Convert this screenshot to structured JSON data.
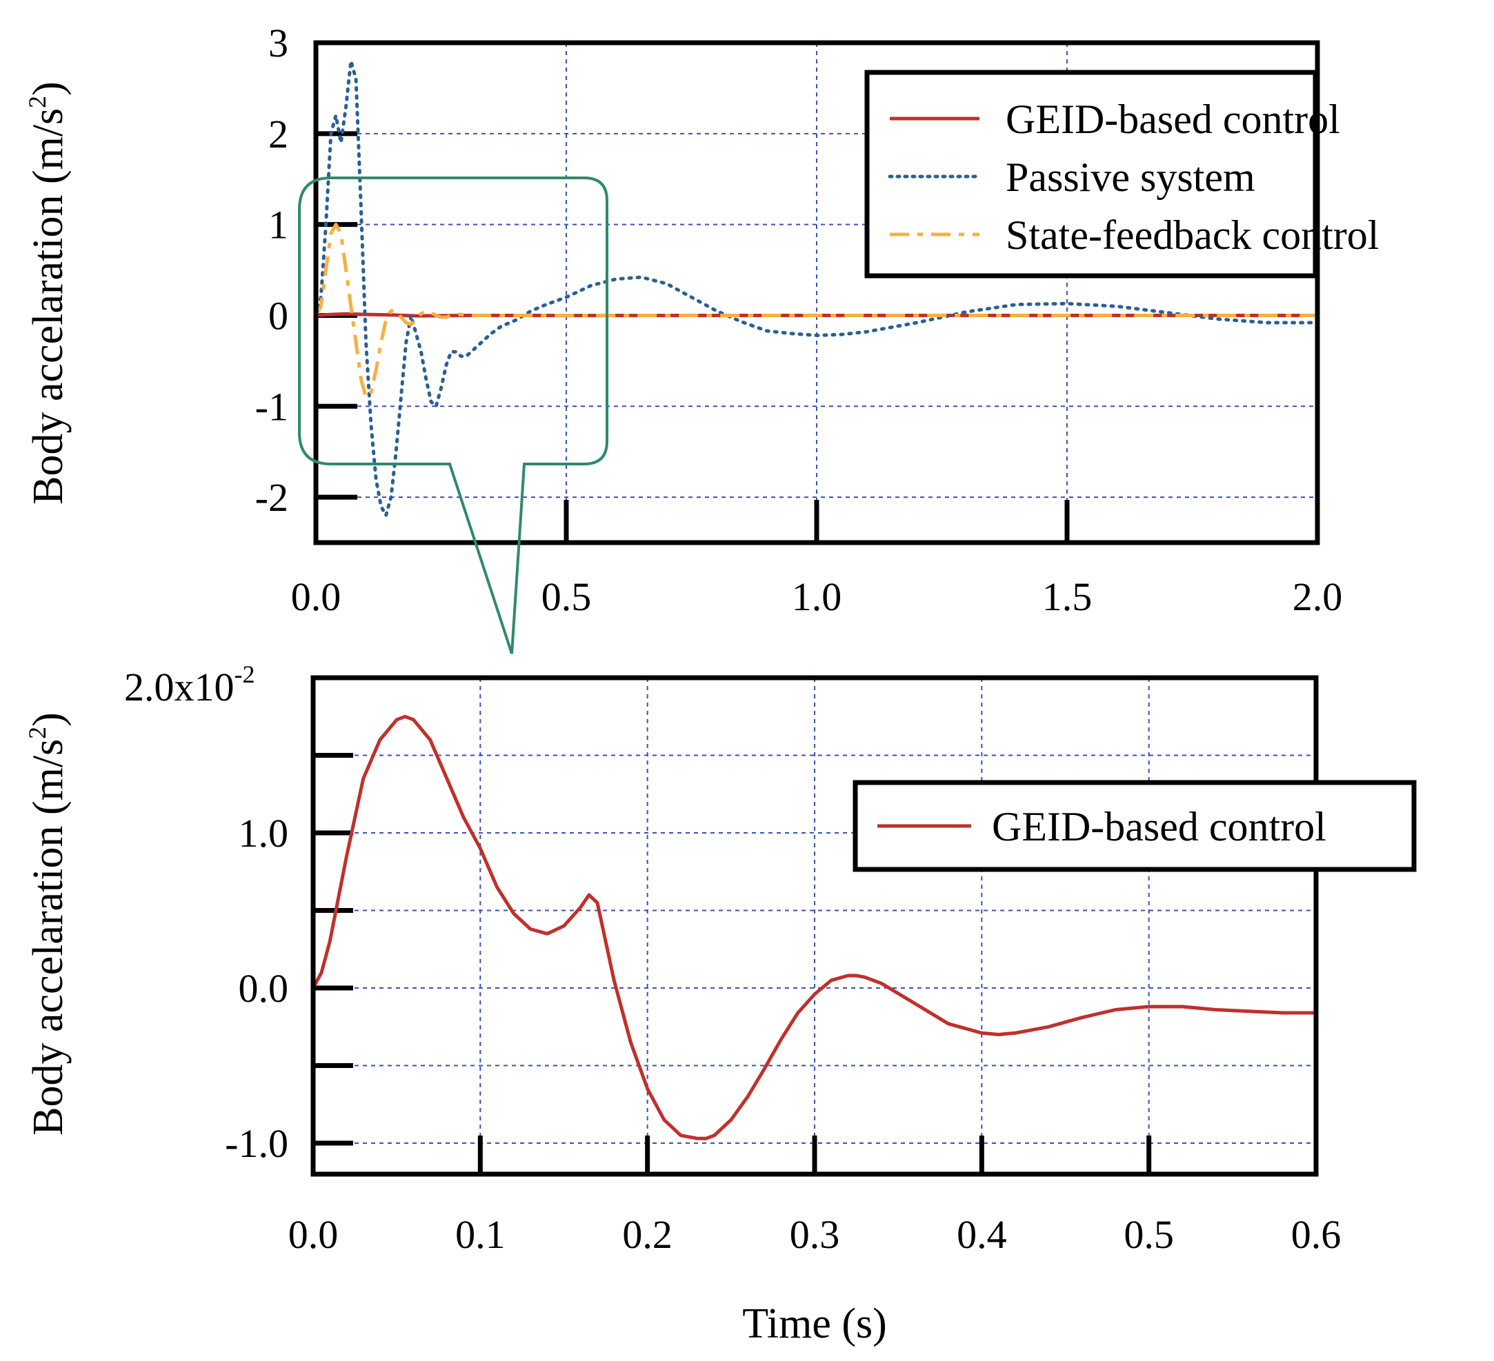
{
  "colors": {
    "geid": "#c0302c",
    "passive": "#2a5f95",
    "state_feedback": "#f5b042",
    "grid": "#3a4fb8",
    "zoom_callout": "#2f8a6a",
    "axes": "#000000"
  },
  "chart_data": [
    {
      "id": "top",
      "type": "line",
      "ylabel_main": "Body accelaration (m/s",
      "ylabel_sup": "2",
      "ylabel_close": ")",
      "xlim": [
        0,
        2.0
      ],
      "ylim": [
        -2.5,
        3
      ],
      "grid": true,
      "xticks": [
        0.0,
        0.5,
        1.0,
        1.5,
        2.0
      ],
      "xtick_labels": [
        "0.0",
        "0.5",
        "1.0",
        "1.5",
        "2.0"
      ],
      "yticks": [
        -2,
        -1,
        0,
        1,
        2,
        3
      ],
      "ytick_labels": [
        "-2",
        "-1",
        "0",
        "1",
        "2",
        "3"
      ],
      "legend_position": "top-right",
      "legend": [
        "GEID-based control",
        "Passive system",
        "State-feedback control"
      ],
      "series": [
        {
          "name": "GEID-based control",
          "style": "solid",
          "color_key": "geid",
          "x": [
            0,
            0.03,
            0.06,
            0.1,
            0.15,
            0.2,
            0.3,
            0.5,
            1.0,
            1.5,
            2.0
          ],
          "y": [
            0,
            0.01,
            0.017,
            0.01,
            0.005,
            -0.005,
            0.0,
            -0.001,
            0.0,
            0.0,
            0.0
          ]
        },
        {
          "name": "Passive system",
          "style": "dotted",
          "color_key": "passive",
          "x": [
            0,
            0.01,
            0.02,
            0.03,
            0.04,
            0.05,
            0.06,
            0.07,
            0.08,
            0.09,
            0.1,
            0.11,
            0.12,
            0.13,
            0.14,
            0.15,
            0.16,
            0.17,
            0.18,
            0.19,
            0.2,
            0.21,
            0.22,
            0.23,
            0.24,
            0.25,
            0.26,
            0.27,
            0.28,
            0.29,
            0.3,
            0.31,
            0.32,
            0.33,
            0.35,
            0.37,
            0.4,
            0.43,
            0.46,
            0.5,
            0.55,
            0.6,
            0.65,
            0.7,
            0.75,
            0.8,
            0.85,
            0.9,
            0.95,
            1.0,
            1.05,
            1.1,
            1.2,
            1.3,
            1.4,
            1.5,
            1.6,
            1.7,
            1.8,
            1.9,
            2.0
          ],
          "y": [
            0,
            0.2,
            1.0,
            2.0,
            2.2,
            1.9,
            2.3,
            2.8,
            2.6,
            1.2,
            -0.3,
            -1.2,
            -1.8,
            -2.1,
            -2.2,
            -2.0,
            -1.5,
            -0.9,
            -0.3,
            0.0,
            -0.2,
            -0.4,
            -0.7,
            -0.95,
            -1.0,
            -0.8,
            -0.55,
            -0.4,
            -0.4,
            -0.45,
            -0.45,
            -0.4,
            -0.35,
            -0.3,
            -0.2,
            -0.12,
            -0.05,
            0.05,
            0.12,
            0.2,
            0.33,
            0.4,
            0.42,
            0.35,
            0.2,
            0.05,
            -0.07,
            -0.17,
            -0.2,
            -0.22,
            -0.21,
            -0.18,
            -0.08,
            0.04,
            0.12,
            0.13,
            0.1,
            0.03,
            -0.04,
            -0.08,
            -0.08
          ]
        },
        {
          "name": "State-feedback control",
          "style": "dashdot",
          "color_key": "state_feedback",
          "x": [
            0,
            0.01,
            0.02,
            0.03,
            0.04,
            0.05,
            0.06,
            0.07,
            0.08,
            0.09,
            0.1,
            0.11,
            0.12,
            0.13,
            0.14,
            0.15,
            0.16,
            0.17,
            0.18,
            0.19,
            0.2,
            0.21,
            0.22,
            0.23,
            0.24,
            0.25,
            0.26,
            0.27,
            0.28,
            0.29,
            0.3,
            0.32,
            0.35,
            0.4,
            0.5,
            0.6,
            0.8,
            1.0,
            1.5,
            2.0
          ],
          "y": [
            0,
            0.1,
            0.5,
            0.9,
            1.0,
            0.9,
            0.5,
            0.1,
            -0.3,
            -0.7,
            -0.9,
            -0.85,
            -0.6,
            -0.3,
            -0.05,
            0.05,
            0.05,
            -0.02,
            -0.08,
            -0.1,
            -0.05,
            0.02,
            0.04,
            0.03,
            0.0,
            -0.02,
            -0.02,
            0.0,
            0.01,
            0.01,
            0.0,
            0.0,
            0.0,
            0.0,
            0.0,
            0.0,
            0.0,
            0.0,
            0.0,
            0.0
          ]
        }
      ]
    },
    {
      "id": "bottom",
      "type": "line",
      "ylabel_main": "Body accelaration (m/s",
      "ylabel_sup": "2",
      "ylabel_close": ")",
      "xlabel": "Time (s)",
      "xlim": [
        0,
        0.6
      ],
      "ylim": [
        -1.2,
        2.0
      ],
      "y_scale_note": "x10^-2",
      "ytick_top_label": "2.0x10",
      "ytick_top_exp": "-2",
      "grid": true,
      "xticks": [
        0.0,
        0.1,
        0.2,
        0.3,
        0.4,
        0.5,
        0.6
      ],
      "xtick_labels": [
        "0.0",
        "0.1",
        "0.2",
        "0.3",
        "0.4",
        "0.5",
        "0.6"
      ],
      "yticks": [
        -1.0,
        -0.5,
        0.0,
        0.5,
        1.0,
        1.5
      ],
      "ytick_labels": [
        "-1.0",
        "",
        "0.0",
        "",
        "1.0",
        ""
      ],
      "legend_position": "top-right",
      "legend": [
        "GEID-based control"
      ],
      "series": [
        {
          "name": "GEID-based control",
          "style": "solid",
          "color_key": "geid",
          "x": [
            0,
            0.005,
            0.01,
            0.02,
            0.03,
            0.04,
            0.05,
            0.055,
            0.06,
            0.07,
            0.08,
            0.09,
            0.1,
            0.11,
            0.12,
            0.13,
            0.14,
            0.15,
            0.16,
            0.165,
            0.17,
            0.18,
            0.19,
            0.2,
            0.21,
            0.22,
            0.23,
            0.235,
            0.24,
            0.25,
            0.26,
            0.27,
            0.28,
            0.29,
            0.3,
            0.31,
            0.32,
            0.325,
            0.33,
            0.34,
            0.36,
            0.38,
            0.4,
            0.41,
            0.42,
            0.44,
            0.46,
            0.48,
            0.5,
            0.52,
            0.54,
            0.56,
            0.58,
            0.6
          ],
          "y": [
            0,
            0.1,
            0.3,
            0.85,
            1.35,
            1.6,
            1.73,
            1.75,
            1.73,
            1.6,
            1.35,
            1.1,
            0.9,
            0.65,
            0.48,
            0.38,
            0.35,
            0.4,
            0.52,
            0.6,
            0.55,
            0.05,
            -0.35,
            -0.65,
            -0.85,
            -0.95,
            -0.97,
            -0.97,
            -0.95,
            -0.85,
            -0.7,
            -0.52,
            -0.33,
            -0.16,
            -0.04,
            0.05,
            0.08,
            0.08,
            0.07,
            0.03,
            -0.1,
            -0.23,
            -0.29,
            -0.3,
            -0.29,
            -0.25,
            -0.19,
            -0.14,
            -0.12,
            -0.12,
            -0.14,
            -0.15,
            -0.16,
            -0.16
          ]
        }
      ]
    }
  ]
}
